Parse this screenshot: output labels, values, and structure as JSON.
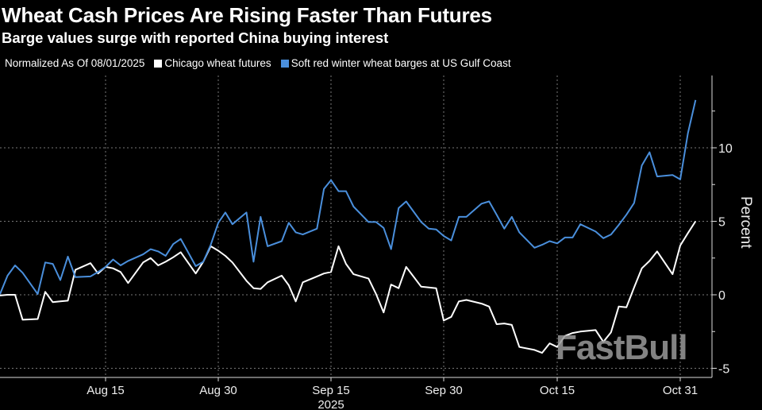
{
  "header": {
    "title": "Wheat Cash Prices Are Rising Faster Than Futures",
    "subtitle": "Barge values surge with reported China buying interest"
  },
  "watermark": "FastBull",
  "chart_data": {
    "type": "line",
    "title": "Wheat Cash Prices Are Rising Faster Than Futures",
    "subtitle": "Barge values surge with reported China buying interest",
    "note": "Normalized As Of 08/01/2025",
    "ylabel": "Percent",
    "ylim": [
      -5.6,
      14.9
    ],
    "y_ticks": [
      "-5",
      "0",
      "5",
      "10"
    ],
    "y_tick_values": [
      -5,
      0,
      5,
      10
    ],
    "x_ticks": [
      "Aug 15",
      "Aug 30",
      "Sep 15",
      "Sep 30",
      "Oct 15",
      "Oct 31"
    ],
    "x_tick_dates": [
      "2025-08-15",
      "2025-08-30",
      "2025-09-15",
      "2025-09-30",
      "2025-10-15",
      "2025-10-31"
    ],
    "x_year_label": "2025",
    "grid": true,
    "legend_position": "top-left",
    "x": [
      "2025-08-01",
      "2025-08-02",
      "2025-08-03",
      "2025-08-04",
      "2025-08-06",
      "2025-08-07",
      "2025-08-08",
      "2025-08-09",
      "2025-08-10",
      "2025-08-11",
      "2025-08-13",
      "2025-08-14",
      "2025-08-15",
      "2025-08-16",
      "2025-08-17",
      "2025-08-18",
      "2025-08-20",
      "2025-08-21",
      "2025-08-22",
      "2025-08-23",
      "2025-08-24",
      "2025-08-25",
      "2025-08-27",
      "2025-08-28",
      "2025-08-29",
      "2025-08-30",
      "2025-08-31",
      "2025-09-01",
      "2025-09-03",
      "2025-09-04",
      "2025-09-05",
      "2025-09-06",
      "2025-09-08",
      "2025-09-09",
      "2025-09-10",
      "2025-09-11",
      "2025-09-13",
      "2025-09-14",
      "2025-09-15",
      "2025-09-16",
      "2025-09-17",
      "2025-09-18",
      "2025-09-20",
      "2025-09-21",
      "2025-09-22",
      "2025-09-23",
      "2025-09-24",
      "2025-09-25",
      "2025-09-27",
      "2025-09-28",
      "2025-09-29",
      "2025-09-30",
      "2025-10-01",
      "2025-10-02",
      "2025-10-03",
      "2025-10-05",
      "2025-10-06",
      "2025-10-07",
      "2025-10-08",
      "2025-10-09",
      "2025-10-10",
      "2025-10-12",
      "2025-10-13",
      "2025-10-14",
      "2025-10-15",
      "2025-10-16",
      "2025-10-17",
      "2025-10-18",
      "2025-10-20",
      "2025-10-21",
      "2025-10-22",
      "2025-10-23",
      "2025-10-24",
      "2025-10-25",
      "2025-10-26",
      "2025-10-27",
      "2025-10-28",
      "2025-10-30",
      "2025-10-31",
      "2025-11-01",
      "2025-11-02"
    ],
    "series": [
      {
        "name": "Chicago wheat futures",
        "color": "#ffffff",
        "values": [
          -0.05,
          0,
          0,
          -1.7,
          -1.65,
          0.2,
          -0.5,
          -0.45,
          -0.4,
          1.7,
          2.15,
          1.45,
          1.9,
          1.8,
          1.55,
          0.8,
          2.2,
          2.5,
          2.0,
          2.25,
          2.55,
          2.9,
          1.45,
          2.25,
          3.3,
          3.0,
          2.65,
          2.2,
          0.95,
          0.45,
          0.4,
          0.85,
          1.3,
          0.65,
          -0.45,
          0.85,
          1.25,
          1.45,
          1.55,
          3.3,
          2.1,
          1.4,
          1.1,
          0.05,
          -1.2,
          0.7,
          0.45,
          1.9,
          0.55,
          0.5,
          0.45,
          -1.75,
          -1.5,
          -0.45,
          -0.35,
          -0.6,
          -0.8,
          -2.0,
          -1.95,
          -2.05,
          -3.55,
          -3.75,
          -3.95,
          -3.3,
          -3.55,
          -2.8,
          -2.6,
          -2.5,
          -2.4,
          -3.2,
          -2.55,
          -0.8,
          -0.85,
          0.5,
          1.8,
          2.3,
          2.95,
          1.4,
          3.35,
          4.2,
          5.0
        ]
      },
      {
        "name": "Soft red winter wheat barges at US Gulf Coast",
        "color": "#4a8fdc",
        "values": [
          0.05,
          1.3,
          2.0,
          1.5,
          0.05,
          2.2,
          2.1,
          1.0,
          2.6,
          1.2,
          1.25,
          1.55,
          1.9,
          2.4,
          2.0,
          2.3,
          2.75,
          3.1,
          2.95,
          2.65,
          3.45,
          3.8,
          1.95,
          2.25,
          3.4,
          4.9,
          5.6,
          4.8,
          5.6,
          2.25,
          5.3,
          3.3,
          3.65,
          4.9,
          4.25,
          4.1,
          4.5,
          7.2,
          7.8,
          7.05,
          7.05,
          6.0,
          4.95,
          4.95,
          4.55,
          3.1,
          5.9,
          6.35,
          4.95,
          4.5,
          4.45,
          4.0,
          3.7,
          5.3,
          5.3,
          6.2,
          6.35,
          5.45,
          4.5,
          5.3,
          4.25,
          3.2,
          3.4,
          3.65,
          3.5,
          3.9,
          3.9,
          4.8,
          4.3,
          3.85,
          4.1,
          4.75,
          5.45,
          6.25,
          8.8,
          9.7,
          8.05,
          8.15,
          7.85,
          11.0,
          13.25
        ]
      }
    ]
  }
}
